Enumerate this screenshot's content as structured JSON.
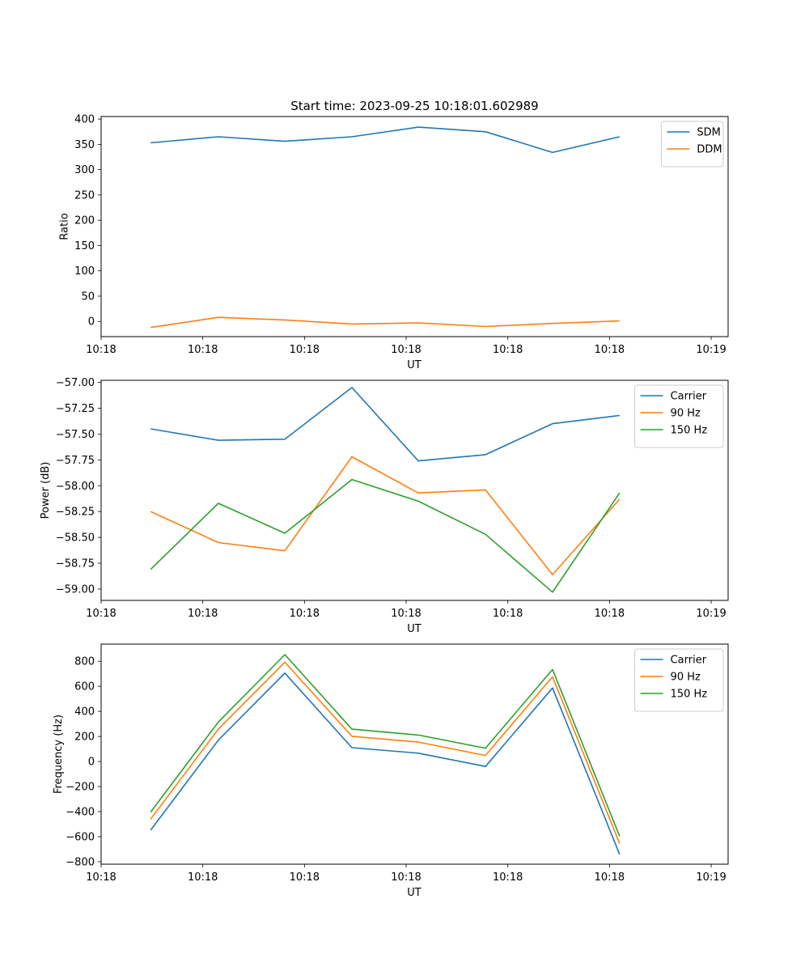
{
  "figure_title": "Start time: 2023-09-25 10:18:01.602989",
  "colors": {
    "blue": "#1f77b4",
    "orange": "#ff7f0e",
    "green": "#2ca02c"
  },
  "chart_data": [
    {
      "type": "line",
      "title": "Start time: 2023-09-25 10:18:01.602989",
      "xlabel": "UT",
      "ylabel": "Ratio",
      "xlim": [
        0,
        9.25
      ],
      "ylim": [
        -30,
        405
      ],
      "x": [
        0.73,
        1.73,
        2.71,
        3.7,
        4.68,
        5.67,
        6.66,
        7.65
      ],
      "xticks": [
        0.0,
        1.5,
        3.0,
        4.5,
        6.0,
        7.5,
        9.0
      ],
      "xtick_labels": [
        "10:18",
        "10:18",
        "10:18",
        "10:18",
        "10:18",
        "10:18",
        "10:19"
      ],
      "yticks": [
        0,
        50,
        100,
        150,
        200,
        250,
        300,
        350,
        400
      ],
      "ytick_labels": [
        "0",
        "50",
        "100",
        "150",
        "200",
        "250",
        "300",
        "350",
        "400"
      ],
      "legend_position": "top-right",
      "series": [
        {
          "name": "SDM",
          "color": "#1f77b4",
          "values": [
            353,
            365,
            356,
            365,
            384,
            375,
            334,
            365
          ]
        },
        {
          "name": "DDM",
          "color": "#ff7f0e",
          "values": [
            -12,
            8,
            3,
            -5,
            -3,
            -10,
            -4,
            1
          ]
        }
      ]
    },
    {
      "type": "line",
      "xlabel": "UT",
      "ylabel": "Power (dB)",
      "xlim": [
        0,
        9.25
      ],
      "ylim": [
        -59.11,
        -56.98
      ],
      "x": [
        0.73,
        1.73,
        2.71,
        3.7,
        4.68,
        5.67,
        6.66,
        7.65
      ],
      "xticks": [
        0.0,
        1.5,
        3.0,
        4.5,
        6.0,
        7.5,
        9.0
      ],
      "xtick_labels": [
        "10:18",
        "10:18",
        "10:18",
        "10:18",
        "10:18",
        "10:18",
        "10:19"
      ],
      "yticks": [
        -57.0,
        -57.25,
        -57.5,
        -57.75,
        -58.0,
        -58.25,
        -58.5,
        -58.75,
        -59.0
      ],
      "ytick_labels": [
        "−57.00",
        "−57.25",
        "−57.50",
        "−57.75",
        "−58.00",
        "−58.25",
        "−58.50",
        "−58.75",
        "−59.00"
      ],
      "legend_position": "top-right",
      "series": [
        {
          "name": "Carrier",
          "color": "#1f77b4",
          "values": [
            -57.45,
            -57.56,
            -57.55,
            -57.05,
            -57.76,
            -57.7,
            -57.4,
            -57.32
          ]
        },
        {
          "name": "90 Hz",
          "color": "#ff7f0e",
          "values": [
            -58.25,
            -58.55,
            -58.63,
            -57.72,
            -58.07,
            -58.04,
            -58.86,
            -58.13
          ]
        },
        {
          "name": "150 Hz",
          "color": "#2ca02c",
          "values": [
            -58.81,
            -58.17,
            -58.46,
            -57.94,
            -58.15,
            -58.47,
            -59.03,
            -58.07
          ]
        }
      ]
    },
    {
      "type": "line",
      "xlabel": "UT",
      "ylabel": "Frequency (Hz)",
      "xlim": [
        0,
        9.25
      ],
      "ylim": [
        -820,
        937
      ],
      "x": [
        0.73,
        1.73,
        2.71,
        3.7,
        4.68,
        5.67,
        6.66,
        7.65
      ],
      "xticks": [
        0.0,
        1.5,
        3.0,
        4.5,
        6.0,
        7.5,
        9.0
      ],
      "xtick_labels": [
        "10:18",
        "10:18",
        "10:18",
        "10:18",
        "10:18",
        "10:18",
        "10:19"
      ],
      "yticks": [
        -800,
        -600,
        -400,
        -200,
        0,
        200,
        400,
        600,
        800
      ],
      "ytick_labels": [
        "−800",
        "−600",
        "−400",
        "−200",
        "0",
        "200",
        "400",
        "600",
        "800"
      ],
      "legend_position": "top-right",
      "series": [
        {
          "name": "Carrier",
          "color": "#1f77b4",
          "values": [
            -548,
            170,
            706,
            110,
            66,
            -40,
            587,
            -741
          ]
        },
        {
          "name": "90 Hz",
          "color": "#ff7f0e",
          "values": [
            -460,
            258,
            792,
            201,
            155,
            48,
            676,
            -654
          ]
        },
        {
          "name": "150 Hz",
          "color": "#2ca02c",
          "values": [
            -404,
            315,
            853,
            258,
            211,
            106,
            734,
            -597
          ]
        }
      ]
    }
  ]
}
